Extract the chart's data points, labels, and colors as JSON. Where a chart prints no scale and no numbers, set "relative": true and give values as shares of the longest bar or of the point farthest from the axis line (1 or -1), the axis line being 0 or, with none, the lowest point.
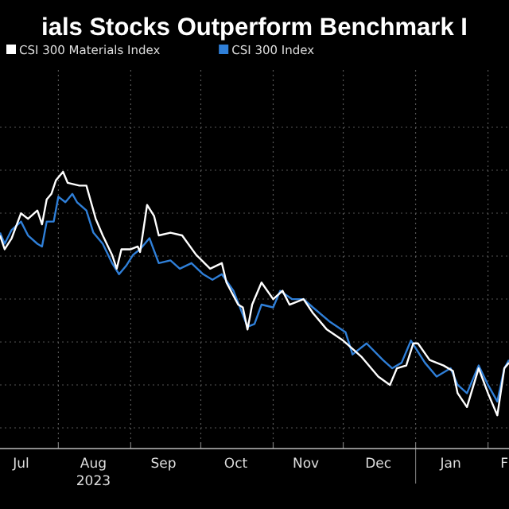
{
  "chart_data": {
    "type": "line",
    "title": "ials Stocks Outperform Benchmark I",
    "relative": true,
    "grid": true,
    "legend": "top left",
    "marker": "none",
    "line_style": "solid",
    "xlim": [
      "2023-07-07",
      "2024-02-10"
    ],
    "xticks": [
      {
        "value": "2023-07-16",
        "label": "Jul"
      },
      {
        "value": "2023-08-01",
        "label": null
      },
      {
        "value": "2023-08-16",
        "label": "Aug\n2023"
      },
      {
        "value": "2023-09-01",
        "label": null
      },
      {
        "value": "2023-09-15",
        "label": "Sep"
      },
      {
        "value": "2023-10-01",
        "label": null
      },
      {
        "value": "2023-10-16",
        "label": "Oct"
      },
      {
        "value": "2023-11-01",
        "label": null
      },
      {
        "value": "2023-11-15",
        "label": "Nov"
      },
      {
        "value": "2023-12-01",
        "label": null
      },
      {
        "value": "2023-12-16",
        "label": "Dec"
      },
      {
        "value": "2024-01-01",
        "label": null
      },
      {
        "value": "2024-01-16",
        "label": "Jan"
      },
      {
        "value": "2024-02-01",
        "label": null
      },
      {
        "value": "2024-02-08",
        "label": "F"
      }
    ],
    "series": [
      {
        "name": "CSI 300 Materials Index",
        "color": "#ffffff",
        "x": [
          "2023-07-07",
          "2023-07-09",
          "2023-07-12",
          "2023-07-16",
          "2023-07-19",
          "2023-07-23",
          "2023-07-25",
          "2023-07-27",
          "2023-07-29",
          "2023-07-31",
          "2023-08-03",
          "2023-08-05",
          "2023-08-10",
          "2023-08-13",
          "2023-08-17",
          "2023-08-20",
          "2023-08-24",
          "2023-08-26",
          "2023-08-28",
          "2023-09-01",
          "2023-09-04",
          "2023-09-05",
          "2023-09-08",
          "2023-09-11",
          "2023-09-13",
          "2023-09-18",
          "2023-09-23",
          "2023-09-29",
          "2023-10-05",
          "2023-10-10",
          "2023-10-12",
          "2023-10-17",
          "2023-10-19",
          "2023-10-21",
          "2023-10-23",
          "2023-10-24",
          "2023-10-27",
          "2023-11-01",
          "2023-11-05",
          "2023-11-08",
          "2023-11-14",
          "2023-11-18",
          "2023-11-24",
          "2023-12-01",
          "2023-12-05",
          "2023-12-09",
          "2023-12-16",
          "2023-12-21",
          "2023-12-24",
          "2023-12-28",
          "2023-12-31",
          "2024-01-02",
          "2024-01-07",
          "2024-01-13",
          "2024-01-17",
          "2024-01-19",
          "2024-01-23",
          "2024-01-28",
          "2024-02-01",
          "2024-02-05",
          "2024-02-08",
          "2024-02-10"
        ],
        "values": [
          0.77,
          0.72,
          0.76,
          0.85,
          0.83,
          0.86,
          0.81,
          0.9,
          0.92,
          0.97,
          1,
          0.96,
          0.95,
          0.95,
          0.83,
          0.77,
          0.7,
          0.65,
          0.72,
          0.72,
          0.73,
          0.71,
          0.88,
          0.84,
          0.77,
          0.78,
          0.77,
          0.7,
          0.65,
          0.67,
          0.6,
          0.52,
          0.51,
          0.43,
          0.52,
          0.54,
          0.6,
          0.54,
          0.57,
          0.52,
          0.54,
          0.49,
          0.43,
          0.39,
          0.36,
          0.33,
          0.26,
          0.23,
          0.29,
          0.3,
          0.38,
          0.38,
          0.32,
          0.3,
          0.28,
          0.2,
          0.15,
          0.29,
          0.2,
          0.12,
          0.29,
          0.31
        ]
      },
      {
        "name": "CSI 300 Index",
        "color": "#2f7fd8",
        "x": [
          "2023-07-07",
          "2023-07-09",
          "2023-07-12",
          "2023-07-16",
          "2023-07-19",
          "2023-07-23",
          "2023-07-25",
          "2023-07-27",
          "2023-07-30",
          "2023-08-01",
          "2023-08-04",
          "2023-08-07",
          "2023-08-09",
          "2023-08-13",
          "2023-08-16",
          "2023-08-20",
          "2023-08-24",
          "2023-08-27",
          "2023-08-30",
          "2023-09-02",
          "2023-09-05",
          "2023-09-09",
          "2023-09-13",
          "2023-09-18",
          "2023-09-22",
          "2023-09-27",
          "2023-10-02",
          "2023-10-06",
          "2023-10-10",
          "2023-10-15",
          "2023-10-21",
          "2023-10-24",
          "2023-10-27",
          "2023-11-01",
          "2023-11-04",
          "2023-11-09",
          "2023-11-14",
          "2023-11-18",
          "2023-11-25",
          "2023-12-02",
          "2023-12-05",
          "2023-12-11",
          "2023-12-18",
          "2023-12-22",
          "2023-12-26",
          "2023-12-30",
          "2024-01-05",
          "2024-01-10",
          "2024-01-16",
          "2024-01-19",
          "2024-01-23",
          "2024-01-28",
          "2024-02-01",
          "2024-02-05",
          "2024-02-08",
          "2024-02-10"
        ],
        "values": [
          0.78,
          0.74,
          0.79,
          0.82,
          0.77,
          0.74,
          0.73,
          0.82,
          0.82,
          0.91,
          0.89,
          0.92,
          0.89,
          0.86,
          0.78,
          0.74,
          0.67,
          0.63,
          0.66,
          0.7,
          0.72,
          0.76,
          0.67,
          0.68,
          0.65,
          0.67,
          0.63,
          0.61,
          0.63,
          0.57,
          0.44,
          0.45,
          0.52,
          0.51,
          0.57,
          0.54,
          0.54,
          0.51,
          0.46,
          0.42,
          0.34,
          0.38,
          0.32,
          0.29,
          0.31,
          0.39,
          0.31,
          0.26,
          0.29,
          0.23,
          0.2,
          0.3,
          0.23,
          0.17,
          0.29,
          0.32
        ]
      }
    ]
  }
}
